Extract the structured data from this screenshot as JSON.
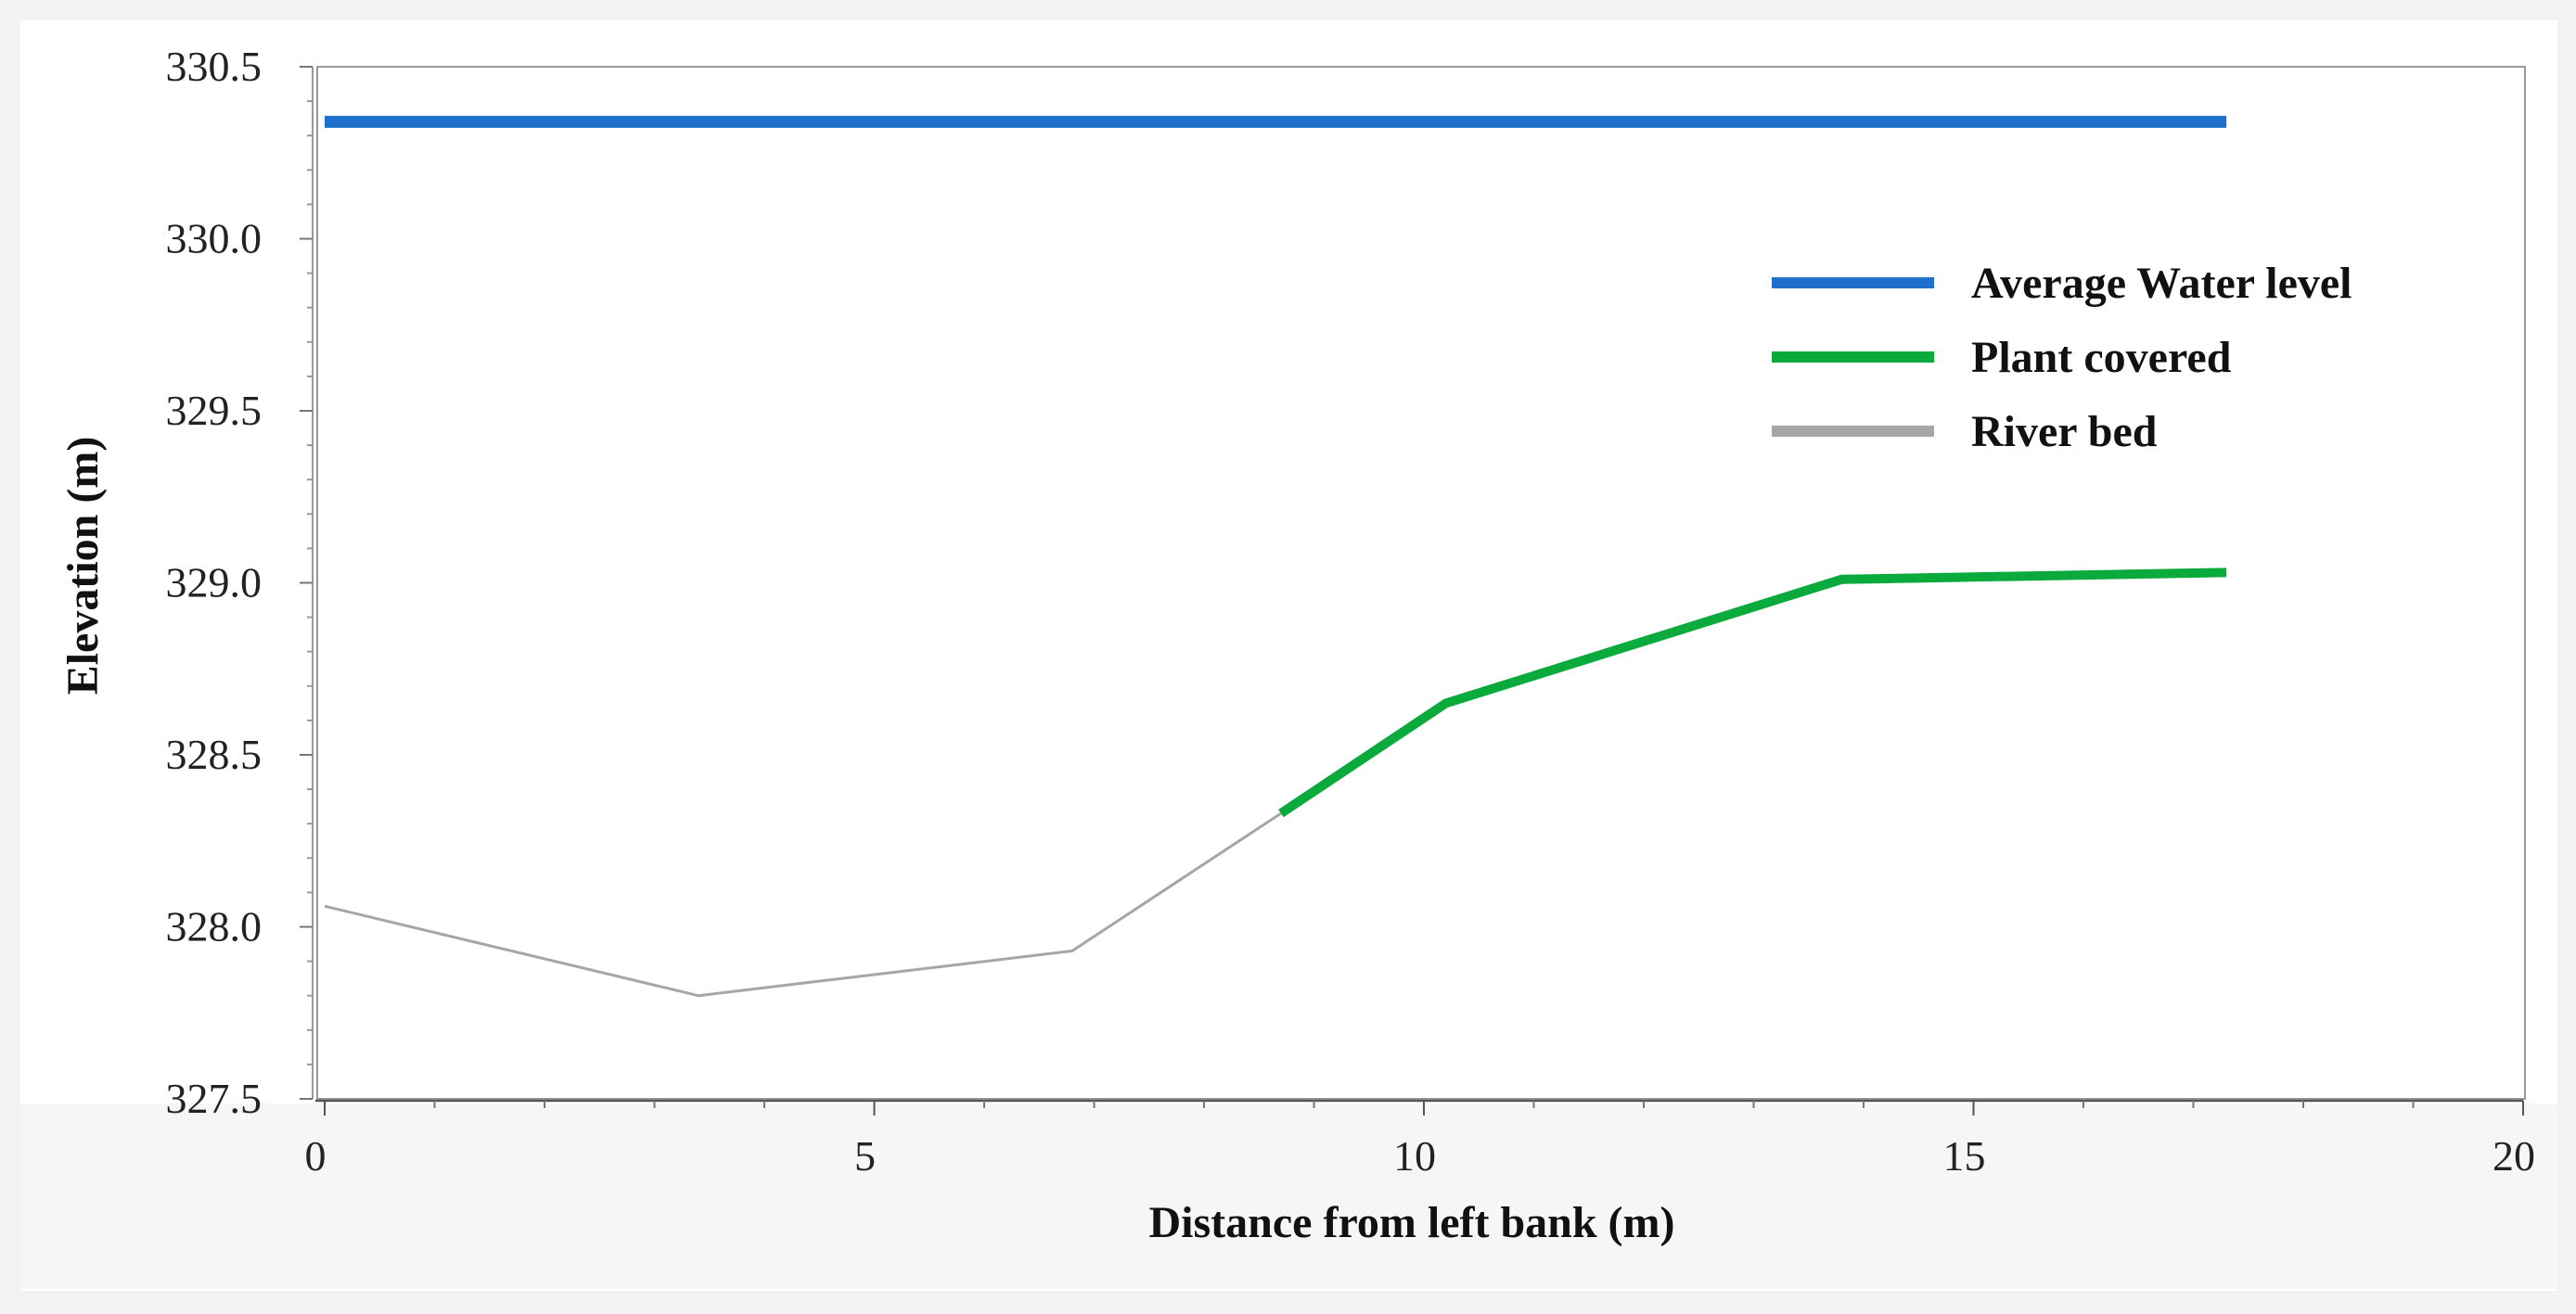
{
  "chart_data": {
    "type": "line",
    "xlabel": "Distance from left bank (m)",
    "ylabel": "Elevation (m)",
    "xlim": [
      0,
      20
    ],
    "ylim": [
      327.5,
      330.5
    ],
    "x_ticks": [
      0,
      5,
      10,
      15,
      20
    ],
    "x_tick_labels": [
      "0",
      "5",
      "10",
      "15",
      "20"
    ],
    "y_ticks": [
      327.5,
      328.0,
      328.5,
      329.0,
      329.5,
      330.0,
      330.5
    ],
    "y_tick_labels": [
      "327.5",
      "328.0",
      "328.5",
      "329.0",
      "329.5",
      "330.0",
      "330.5"
    ],
    "grid": false,
    "legend_position": "top-right",
    "series": [
      {
        "name": "Average Water level",
        "color": "#1f6fcc",
        "x": [
          0,
          17.3
        ],
        "y": [
          330.34,
          330.34
        ]
      },
      {
        "name": "Plant covered",
        "color": "#0aaa3c",
        "x": [
          8.7,
          10.2,
          13.8,
          17.3
        ],
        "y": [
          328.33,
          328.65,
          329.01,
          329.03
        ]
      },
      {
        "name": "River bed",
        "color": "#a6a6a6",
        "x": [
          0,
          3.4,
          6.8,
          8.7
        ],
        "y": [
          328.06,
          327.8,
          327.93,
          328.33
        ]
      }
    ]
  }
}
